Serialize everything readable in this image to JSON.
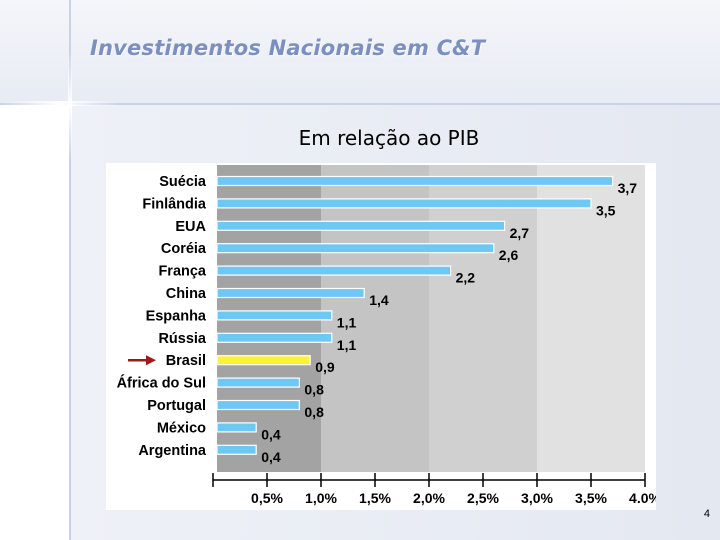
{
  "slide": {
    "title": "Investimentos Nacionais em C&T",
    "page_number": "4"
  },
  "colors": {
    "bar": "#6ec8f5",
    "highlight_bar": "#fbf23a",
    "arrow": "#a01818",
    "band_dark": "#a3a3a3",
    "band_light": "#e1e1e1"
  },
  "chart_data": {
    "type": "bar",
    "orientation": "horizontal",
    "title": "Em relação ao PIB",
    "categories": [
      "Suécia",
      "Finlândia",
      "EUA",
      "Coréia",
      "França",
      "China",
      "Espanha",
      "Rússia",
      "Brasil",
      "África do Sul",
      "Portugal",
      "México",
      "Argentina"
    ],
    "values": [
      3.7,
      3.5,
      2.7,
      2.6,
      2.2,
      1.4,
      1.1,
      1.1,
      0.9,
      0.8,
      0.8,
      0.4,
      0.4
    ],
    "value_labels": [
      "3,7",
      "3,5",
      "2,7",
      "2,6",
      "2,2",
      "1,4",
      "1,1",
      "1,1",
      "0,9",
      "0,8",
      "0,8",
      "0,4",
      "0,4"
    ],
    "highlighted_category": "Brasil",
    "xlim": [
      0,
      4
    ],
    "xticks": [
      0.5,
      1.0,
      1.5,
      2.0,
      2.5,
      3.0,
      3.5,
      4.0
    ],
    "xtick_labels": [
      "0,5%",
      "1,0%",
      "1,5%",
      "2,0%",
      "2,5%",
      "3,0%",
      "3,5%",
      "4.0%"
    ],
    "grid": false,
    "legend": "none"
  }
}
